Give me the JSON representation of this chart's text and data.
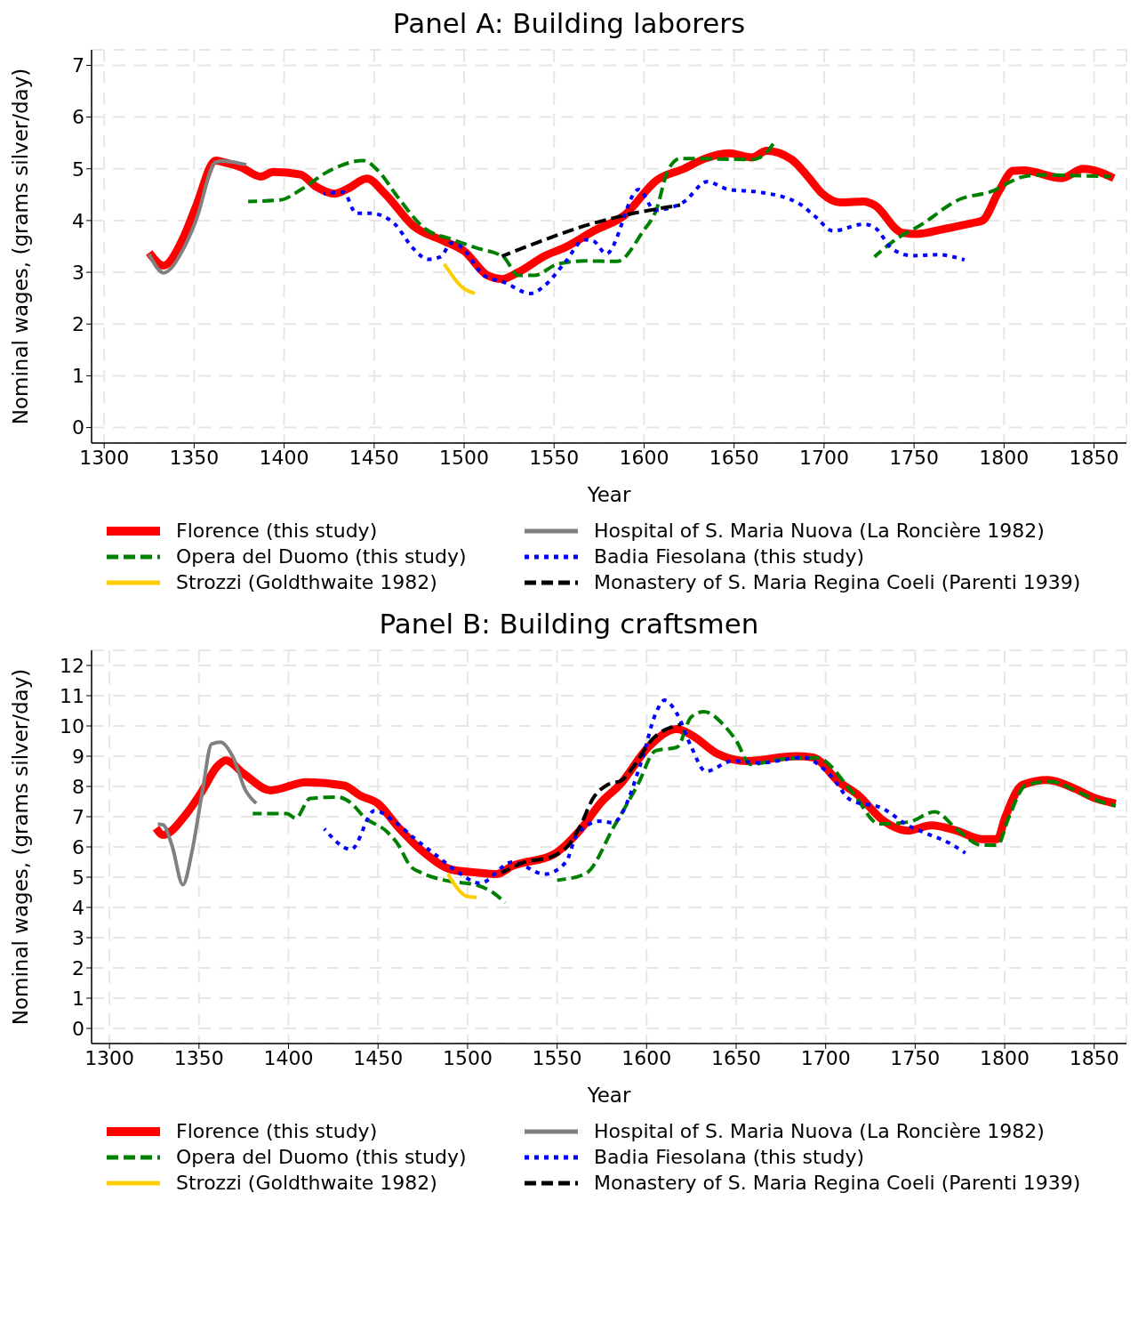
{
  "chart_data": [
    {
      "type": "line",
      "title": "Panel A: Building laborers",
      "xlabel": "Year",
      "ylabel": "Nominal wages, (grams silver/day)",
      "xlim": [
        1293,
        1868
      ],
      "xticks": [
        1300,
        1350,
        1400,
        1450,
        1500,
        1550,
        1600,
        1650,
        1700,
        1750,
        1800,
        1850
      ],
      "ylim": [
        -0.3,
        7.3
      ],
      "yticks": [
        0,
        1,
        2,
        3,
        4,
        5,
        6,
        7
      ],
      "grid": true,
      "legend": "bottom",
      "series": [
        {
          "name": "Florence (this study)",
          "color": "#ff0000",
          "line_style": "solid",
          "x": [
            1325,
            1333,
            1344,
            1351,
            1362,
            1366,
            1376,
            1387,
            1394,
            1409,
            1418,
            1428,
            1435,
            1446,
            1456,
            1472,
            1489,
            1500,
            1513,
            1521,
            1530,
            1545,
            1556,
            1572,
            1589,
            1607,
            1622,
            1634,
            1647,
            1660,
            1668,
            1682,
            1691,
            1699,
            1709,
            1722,
            1728,
            1743,
            1751,
            1767,
            1782,
            1788,
            1797,
            1805,
            1811,
            1832,
            1844,
            1861
          ],
          "values": [
            3.38,
            3.13,
            3.67,
            4.27,
            5.16,
            5.13,
            5.03,
            4.85,
            4.94,
            4.89,
            4.65,
            4.52,
            4.61,
            4.81,
            4.52,
            3.89,
            3.6,
            3.41,
            2.94,
            2.87,
            3.0,
            3.32,
            3.48,
            3.8,
            4.1,
            4.78,
            5.0,
            5.2,
            5.3,
            5.22,
            5.35,
            5.18,
            4.85,
            4.52,
            4.35,
            4.37,
            4.3,
            3.77,
            3.74,
            3.84,
            3.95,
            4.0,
            4.56,
            4.96,
            4.97,
            4.82,
            5.0,
            4.82
          ]
        },
        {
          "name": "Hospital of S. Maria Nuova (La Roncière 1982)",
          "color": "#808080",
          "line_style": "solid",
          "x": [
            1325,
            1333,
            1344,
            1351,
            1362,
            1366,
            1379
          ],
          "values": [
            3.35,
            2.99,
            3.45,
            4.0,
            5.13,
            5.15,
            5.08
          ]
        },
        {
          "name": "Opera del Duomo (this study)",
          "color": "#008000",
          "line_style": "dashed",
          "x": [
            1380,
            1398,
            1409,
            1424,
            1444,
            1452,
            1463,
            1478,
            1493,
            1506,
            1522,
            1530,
            1539,
            1552,
            1567,
            1585,
            1599,
            1607,
            1613,
            1620,
            1660,
            1668,
            1673,
            1700,
            1728,
            1740,
            1753,
            1776,
            1792,
            1811,
            1820,
            1859
          ],
          "values": [
            4.37,
            4.4,
            4.59,
            4.94,
            5.16,
            4.97,
            4.46,
            3.85,
            3.64,
            3.48,
            3.29,
            2.94,
            2.94,
            3.16,
            3.22,
            3.21,
            3.77,
            4.23,
            4.95,
            5.2,
            5.18,
            5.32,
            5.55,
            null,
            3.3,
            3.64,
            3.9,
            4.42,
            4.55,
            4.85,
            4.88,
            4.85
          ]
        },
        {
          "name": "Badia Fiesolana (this study)",
          "color": "#0000ff",
          "line_style": "dotted",
          "x": [
            1422,
            1433,
            1440,
            1448,
            1461,
            1472,
            1480,
            1487,
            1493,
            1498,
            1511,
            1522,
            1537,
            1545,
            1556,
            1567,
            1572,
            1579,
            1597,
            1606,
            1622,
            1635,
            1647,
            1664,
            1686,
            1695,
            1705,
            1722,
            1728,
            1738,
            1749,
            1763,
            1778
          ],
          "values": [
            4.52,
            4.55,
            4.14,
            4.14,
            3.95,
            3.45,
            3.25,
            3.3,
            3.57,
            3.5,
            2.94,
            2.81,
            2.59,
            2.75,
            3.19,
            3.63,
            3.6,
            3.36,
            4.6,
            4.2,
            4.36,
            4.75,
            4.6,
            4.55,
            4.33,
            4.08,
            3.8,
            3.93,
            3.87,
            3.45,
            3.32,
            3.34,
            3.24
          ]
        },
        {
          "name": "Strozzi (Goldthwaite 1982)",
          "color": "#ffcc00",
          "line_style": "solid",
          "x": [
            1489,
            1499,
            1506
          ],
          "values": [
            3.16,
            2.71,
            2.59
          ]
        },
        {
          "name": "Monastery of S. Maria Regina Coeli (Parenti 1939)",
          "color": "#000000",
          "line_style": "dashed",
          "x": [
            1521,
            1548,
            1570,
            1589,
            1620
          ],
          "values": [
            3.31,
            3.67,
            3.93,
            4.1,
            4.3
          ]
        }
      ]
    },
    {
      "type": "line",
      "title": "Panel B: Building craftsmen",
      "xlabel": "Year",
      "ylabel": "Nominal wages, (grams silver/day)",
      "xlim": [
        1290,
        1868
      ],
      "xticks": [
        1300,
        1350,
        1400,
        1450,
        1500,
        1550,
        1600,
        1650,
        1700,
        1750,
        1800,
        1850
      ],
      "ylim": [
        -0.5,
        12.5
      ],
      "yticks": [
        0,
        1,
        2,
        3,
        4,
        5,
        6,
        7,
        8,
        9,
        10,
        11,
        12
      ],
      "grid": true,
      "legend": "bottom",
      "series": [
        {
          "name": "Florence (this study)",
          "color": "#ff0000",
          "line_style": "solid",
          "x": [
            1326,
            1330,
            1343,
            1352,
            1360,
            1365,
            1375,
            1390,
            1410,
            1431,
            1440,
            1450,
            1461,
            1476,
            1491,
            1506,
            1516,
            1525,
            1548,
            1563,
            1575,
            1585,
            1601,
            1617,
            1625,
            1640,
            1656,
            1683,
            1693,
            1707,
            1718,
            1732,
            1746,
            1759,
            1773,
            1787,
            1796,
            1800,
            1810,
            1824,
            1839,
            1851,
            1862
          ],
          "values": [
            6.62,
            6.4,
            7.1,
            7.87,
            8.65,
            8.86,
            8.42,
            7.87,
            8.14,
            8.03,
            7.7,
            7.43,
            6.67,
            5.8,
            5.25,
            5.15,
            5.1,
            5.37,
            5.75,
            6.57,
            7.5,
            8.05,
            9.3,
            9.9,
            9.7,
            9.07,
            8.84,
            9.0,
            8.96,
            8.17,
            7.72,
            6.88,
            6.54,
            6.71,
            6.54,
            6.26,
            6.26,
            6.93,
            8.05,
            8.21,
            7.93,
            7.6,
            7.43
          ]
        },
        {
          "name": "Hospital of S. Maria Nuova (La Roncière 1982)",
          "color": "#808080",
          "line_style": "solid",
          "x": [
            1327,
            1330,
            1335,
            1341,
            1346,
            1352,
            1357,
            1362,
            1369,
            1376,
            1382
          ],
          "values": [
            6.76,
            6.73,
            6.03,
            4.75,
            5.82,
            7.87,
            9.4,
            9.46,
            8.97,
            7.87,
            7.44
          ]
        },
        {
          "name": "Opera del Duomo (this study)",
          "color": "#008000",
          "line_style": "dashed",
          "x": [
            1380,
            1399,
            1404,
            1412,
            1427,
            1435,
            1442,
            1455,
            1461,
            1468,
            1474,
            1487,
            1506,
            1514,
            1521,
            1535,
            1550,
            1566,
            1582,
            1595,
            1605,
            1617,
            1625,
            1632,
            1644,
            1650,
            1658,
            1675,
            1695,
            1715,
            1730,
            1746,
            1761,
            1773,
            1787,
            1796,
            1802,
            1812,
            1826,
            1839,
            1851,
            1862
          ],
          "values": [
            7.1,
            7.1,
            6.95,
            7.6,
            7.65,
            7.45,
            7.0,
            6.5,
            6.1,
            5.37,
            5.15,
            4.9,
            4.72,
            4.5,
            4.15,
            null,
            4.9,
            5.12,
            6.7,
            8.05,
            9.18,
            9.3,
            10.3,
            10.47,
            9.97,
            9.52,
            8.73,
            8.9,
            8.95,
            7.8,
            6.76,
            6.82,
            7.16,
            6.6,
            6.06,
            6.06,
            6.93,
            8.05,
            8.16,
            7.88,
            7.55,
            7.36
          ]
        },
        {
          "name": "Badia Fiesolana (this study)",
          "color": "#0000ff",
          "line_style": "dotted",
          "x": [
            1420,
            1435,
            1448,
            1460,
            1470,
            1483,
            1495,
            1507,
            1525,
            1543,
            1555,
            1561,
            1574,
            1581,
            1597,
            1605,
            1610,
            1617,
            1625,
            1633,
            1648,
            1664,
            1687,
            1703,
            1714,
            1732,
            1746,
            1757,
            1769,
            1778
          ],
          "values": [
            6.6,
            5.92,
            7.2,
            6.8,
            6.3,
            5.7,
            5.15,
            4.8,
            5.5,
            5.1,
            5.5,
            6.4,
            6.85,
            6.8,
            8.8,
            10.4,
            10.85,
            10.4,
            9.3,
            8.5,
            8.84,
            8.78,
            8.96,
            8.34,
            7.55,
            7.27,
            6.71,
            6.43,
            6.13,
            5.8
          ]
        },
        {
          "name": "Strozzi (Goldthwaite 1982)",
          "color": "#ffcc00",
          "line_style": "solid",
          "x": [
            1489,
            1500,
            1505
          ],
          "values": [
            5.1,
            4.36,
            4.33
          ]
        },
        {
          "name": "Monastery of S. Maria Regina Coeli (Parenti 1939)",
          "color": "#000000",
          "line_style": "dashed",
          "x": [
            1519,
            1531,
            1548,
            1556,
            1563,
            1570,
            1578,
            1586,
            1592,
            1603,
            1619
          ],
          "values": [
            5.15,
            5.48,
            5.7,
            6.03,
            6.7,
            7.6,
            8.05,
            8.2,
            8.6,
            9.55,
            10.05
          ]
        }
      ]
    }
  ]
}
